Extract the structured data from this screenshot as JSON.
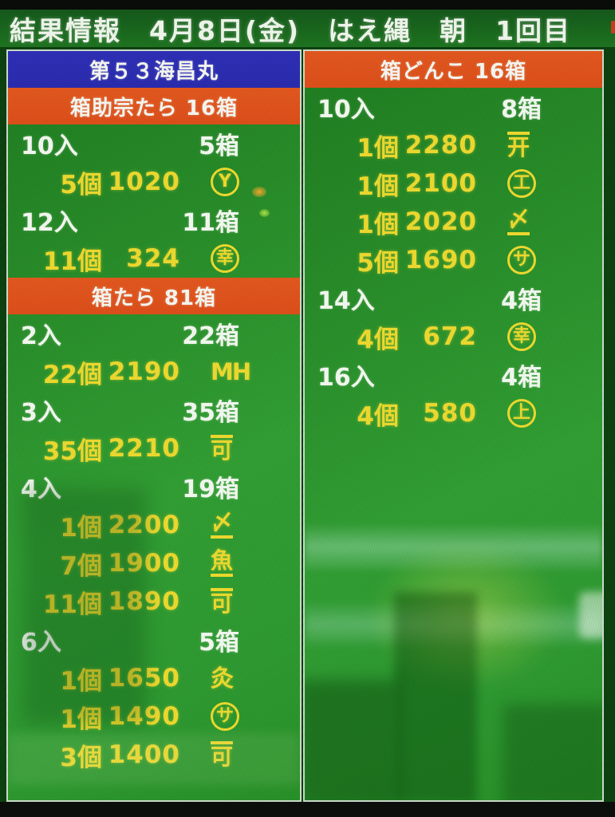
{
  "colors": {
    "panel_green": "#2a8f2b",
    "title_band_green": "#1d6e1f",
    "boat_banner_blue": "#2d2eb4",
    "species_banner_orange": "#e0531d",
    "price_text_yellow": "#eeda2f",
    "label_text_white": "#f3faf0",
    "panel_border": "#ccdccb"
  },
  "header": {
    "title": "結果情報　4月8日(金)　はえ縄　朝　1回目"
  },
  "left_panel": {
    "boat_header": "第５３海昌丸",
    "rows": [
      {
        "kind": "banner",
        "text": "箱助宗たら 16箱"
      },
      {
        "kind": "size",
        "pack": "10入",
        "boxes": "5箱"
      },
      {
        "kind": "sale",
        "qty": "5個",
        "price": "1020",
        "mark": "Y",
        "mark_style": "circle"
      },
      {
        "kind": "size",
        "pack": "12入",
        "boxes": "11箱"
      },
      {
        "kind": "sale",
        "qty": "11個",
        "price": "324",
        "mark": "幸",
        "mark_style": "circle"
      },
      {
        "kind": "banner",
        "text": "箱たら 81箱"
      },
      {
        "kind": "size",
        "pack": "2入",
        "boxes": "22箱"
      },
      {
        "kind": "sale",
        "qty": "22個",
        "price": "2190",
        "mark": "MH",
        "mark_style": "plain"
      },
      {
        "kind": "size",
        "pack": "3入",
        "boxes": "35箱"
      },
      {
        "kind": "sale",
        "qty": "35個",
        "price": "2210",
        "mark": "可",
        "mark_style": "overline"
      },
      {
        "kind": "size",
        "pack": "4入",
        "boxes": "19箱"
      },
      {
        "kind": "sale",
        "qty": "1個",
        "price": "2200",
        "mark": "〆",
        "mark_style": "underline"
      },
      {
        "kind": "sale",
        "qty": "7個",
        "price": "1900",
        "mark": "魚",
        "mark_style": "underline"
      },
      {
        "kind": "sale",
        "qty": "11個",
        "price": "1890",
        "mark": "可",
        "mark_style": "overline"
      },
      {
        "kind": "size",
        "pack": "6入",
        "boxes": "5箱"
      },
      {
        "kind": "sale",
        "qty": "1個",
        "price": "1650",
        "mark": "灸",
        "mark_style": "plain"
      },
      {
        "kind": "sale",
        "qty": "1個",
        "price": "1490",
        "mark": "サ",
        "mark_style": "circle"
      },
      {
        "kind": "sale",
        "qty": "3個",
        "price": "1400",
        "mark": "可",
        "mark_style": "overline"
      }
    ]
  },
  "right_panel": {
    "rows": [
      {
        "kind": "banner",
        "text": "箱どんこ 16箱"
      },
      {
        "kind": "size",
        "pack": "10入",
        "boxes": "8箱"
      },
      {
        "kind": "sale",
        "qty": "1個",
        "price": "2280",
        "mark": "开",
        "mark_style": "overline"
      },
      {
        "kind": "sale",
        "qty": "1個",
        "price": "2100",
        "mark": "工",
        "mark_style": "circle"
      },
      {
        "kind": "sale",
        "qty": "1個",
        "price": "2020",
        "mark": "〆",
        "mark_style": "underline"
      },
      {
        "kind": "sale",
        "qty": "5個",
        "price": "1690",
        "mark": "サ",
        "mark_style": "circle"
      },
      {
        "kind": "size",
        "pack": "14入",
        "boxes": "4箱"
      },
      {
        "kind": "sale",
        "qty": "4個",
        "price": "672",
        "mark": "幸",
        "mark_style": "circle"
      },
      {
        "kind": "size",
        "pack": "16入",
        "boxes": "4箱"
      },
      {
        "kind": "sale",
        "qty": "4個",
        "price": "580",
        "mark": "上",
        "mark_style": "circle"
      }
    ]
  }
}
